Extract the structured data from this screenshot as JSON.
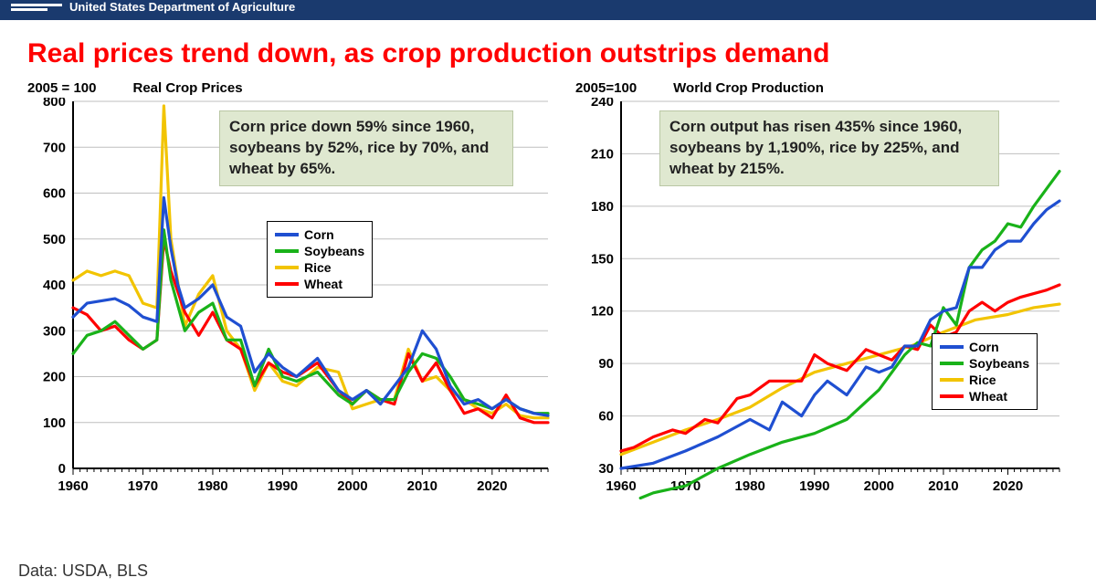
{
  "header": {
    "org": "United States Department of Agriculture"
  },
  "title": "Real prices trend down, as crop production outstrips demand",
  "source": "Data: USDA, BLS",
  "colors": {
    "corn": "#1f4fd1",
    "soybeans": "#19b219",
    "rice": "#f2c400",
    "wheat": "#ff0000",
    "axis": "#000000",
    "grid": "#bfbfbf",
    "callout_bg": "#dfe8d0",
    "background": "#ffffff",
    "title": "#ff0000",
    "header_bg": "#1a3a6e"
  },
  "legend_labels": {
    "corn": "Corn",
    "soybeans": "Soybeans",
    "rice": "Rice",
    "wheat": "Wheat"
  },
  "chart_prices": {
    "type": "line",
    "title": "Real Crop Prices",
    "basis_label": "2005 = 100",
    "callout": "Corn price down 59% since 1960, soybeans by 52%, rice by 70%, and wheat by 65%.",
    "xlim": [
      1960,
      2028
    ],
    "ylim": [
      0,
      800
    ],
    "ytick_step": 100,
    "xtick_step": 10,
    "line_width": 3.2,
    "series": {
      "corn": {
        "x": [
          1960,
          1962,
          1964,
          1966,
          1968,
          1970,
          1972,
          1973,
          1974,
          1975,
          1976,
          1978,
          1980,
          1982,
          1984,
          1986,
          1988,
          1990,
          1992,
          1995,
          1998,
          2000,
          2002,
          2004,
          2006,
          2008,
          2010,
          2012,
          2014,
          2016,
          2018,
          2020,
          2022,
          2024,
          2026,
          2028
        ],
        "y": [
          330,
          360,
          365,
          370,
          355,
          330,
          320,
          590,
          480,
          400,
          350,
          370,
          400,
          330,
          310,
          210,
          250,
          220,
          200,
          240,
          170,
          150,
          170,
          140,
          180,
          220,
          300,
          260,
          180,
          140,
          150,
          130,
          150,
          130,
          120,
          115
        ]
      },
      "soybeans": {
        "x": [
          1960,
          1962,
          1964,
          1966,
          1968,
          1970,
          1972,
          1973,
          1974,
          1976,
          1978,
          1980,
          1982,
          1984,
          1986,
          1988,
          1990,
          1992,
          1995,
          1998,
          2000,
          2002,
          2004,
          2006,
          2008,
          2010,
          2012,
          2014,
          2016,
          2018,
          2020,
          2022,
          2024,
          2026,
          2028
        ],
        "y": [
          250,
          290,
          300,
          320,
          290,
          260,
          280,
          520,
          410,
          300,
          340,
          360,
          280,
          280,
          180,
          260,
          200,
          190,
          210,
          160,
          140,
          170,
          150,
          150,
          210,
          250,
          240,
          200,
          150,
          140,
          130,
          150,
          130,
          120,
          120
        ]
      },
      "rice": {
        "x": [
          1960,
          1962,
          1964,
          1966,
          1968,
          1970,
          1972,
          1973,
          1974,
          1976,
          1978,
          1980,
          1982,
          1984,
          1986,
          1988,
          1990,
          1992,
          1995,
          1998,
          2000,
          2002,
          2004,
          2006,
          2008,
          2010,
          2012,
          2014,
          2016,
          2018,
          2020,
          2022,
          2024,
          2026,
          2028
        ],
        "y": [
          410,
          430,
          420,
          430,
          420,
          360,
          350,
          790,
          500,
          310,
          380,
          420,
          300,
          260,
          170,
          230,
          190,
          180,
          220,
          210,
          130,
          140,
          150,
          150,
          260,
          190,
          200,
          170,
          150,
          130,
          120,
          140,
          115,
          110,
          110
        ]
      },
      "wheat": {
        "x": [
          1960,
          1962,
          1964,
          1966,
          1968,
          1970,
          1972,
          1973,
          1974,
          1976,
          1978,
          1980,
          1982,
          1984,
          1986,
          1988,
          1990,
          1992,
          1995,
          1998,
          2000,
          2002,
          2004,
          2006,
          2008,
          2010,
          2012,
          2014,
          2016,
          2018,
          2020,
          2022,
          2024,
          2026,
          2028
        ],
        "y": [
          350,
          335,
          300,
          310,
          280,
          260,
          280,
          500,
          430,
          340,
          290,
          340,
          280,
          260,
          180,
          230,
          210,
          200,
          230,
          170,
          140,
          170,
          150,
          140,
          250,
          190,
          230,
          170,
          120,
          130,
          110,
          160,
          110,
          100,
          100
        ]
      }
    }
  },
  "chart_production": {
    "type": "line",
    "title": "World Crop Production",
    "basis_label": "2005=100",
    "callout": "Corn output has risen 435% since 1960, soybeans by 1,190%, rice by 225%, and wheat by 215%.",
    "xlim": [
      1960,
      2028
    ],
    "ylim": [
      30,
      240
    ],
    "ytick_step": 30,
    "ytick_start": 30,
    "xtick_step": 10,
    "line_width": 3.2,
    "series": {
      "corn": {
        "x": [
          1960,
          1965,
          1970,
          1975,
          1980,
          1983,
          1985,
          1988,
          1990,
          1992,
          1995,
          1998,
          2000,
          2002,
          2004,
          2006,
          2008,
          2010,
          2012,
          2014,
          2016,
          2018,
          2020,
          2022,
          2024,
          2026,
          2028
        ],
        "y": [
          30,
          33,
          40,
          48,
          58,
          52,
          68,
          60,
          72,
          80,
          72,
          88,
          85,
          88,
          100,
          100,
          115,
          120,
          122,
          145,
          145,
          155,
          160,
          160,
          170,
          178,
          183
        ]
      },
      "soybeans": {
        "x": [
          1963,
          1965,
          1970,
          1975,
          1980,
          1985,
          1990,
          1995,
          2000,
          2004,
          2006,
          2008,
          2010,
          2012,
          2014,
          2016,
          2018,
          2020,
          2022,
          2024,
          2026,
          2028
        ],
        "y": [
          13,
          16,
          20,
          30,
          38,
          45,
          50,
          58,
          75,
          95,
          102,
          100,
          122,
          112,
          145,
          155,
          160,
          170,
          168,
          180,
          190,
          200
        ]
      },
      "rice": {
        "x": [
          1960,
          1965,
          1970,
          1975,
          1980,
          1985,
          1990,
          1995,
          2000,
          2005,
          2010,
          2015,
          2020,
          2024,
          2028
        ],
        "y": [
          38,
          45,
          52,
          58,
          65,
          76,
          85,
          90,
          95,
          100,
          108,
          115,
          118,
          122,
          124
        ]
      },
      "wheat": {
        "x": [
          1960,
          1962,
          1965,
          1968,
          1970,
          1973,
          1975,
          1978,
          1980,
          1983,
          1985,
          1988,
          1990,
          1992,
          1995,
          1998,
          2000,
          2002,
          2004,
          2006,
          2008,
          2010,
          2012,
          2014,
          2016,
          2018,
          2020,
          2022,
          2024,
          2026,
          2028
        ],
        "y": [
          40,
          42,
          48,
          52,
          50,
          58,
          56,
          70,
          72,
          80,
          80,
          80,
          95,
          90,
          86,
          98,
          95,
          92,
          100,
          98,
          112,
          105,
          108,
          120,
          125,
          120,
          125,
          128,
          130,
          132,
          135
        ]
      }
    }
  }
}
